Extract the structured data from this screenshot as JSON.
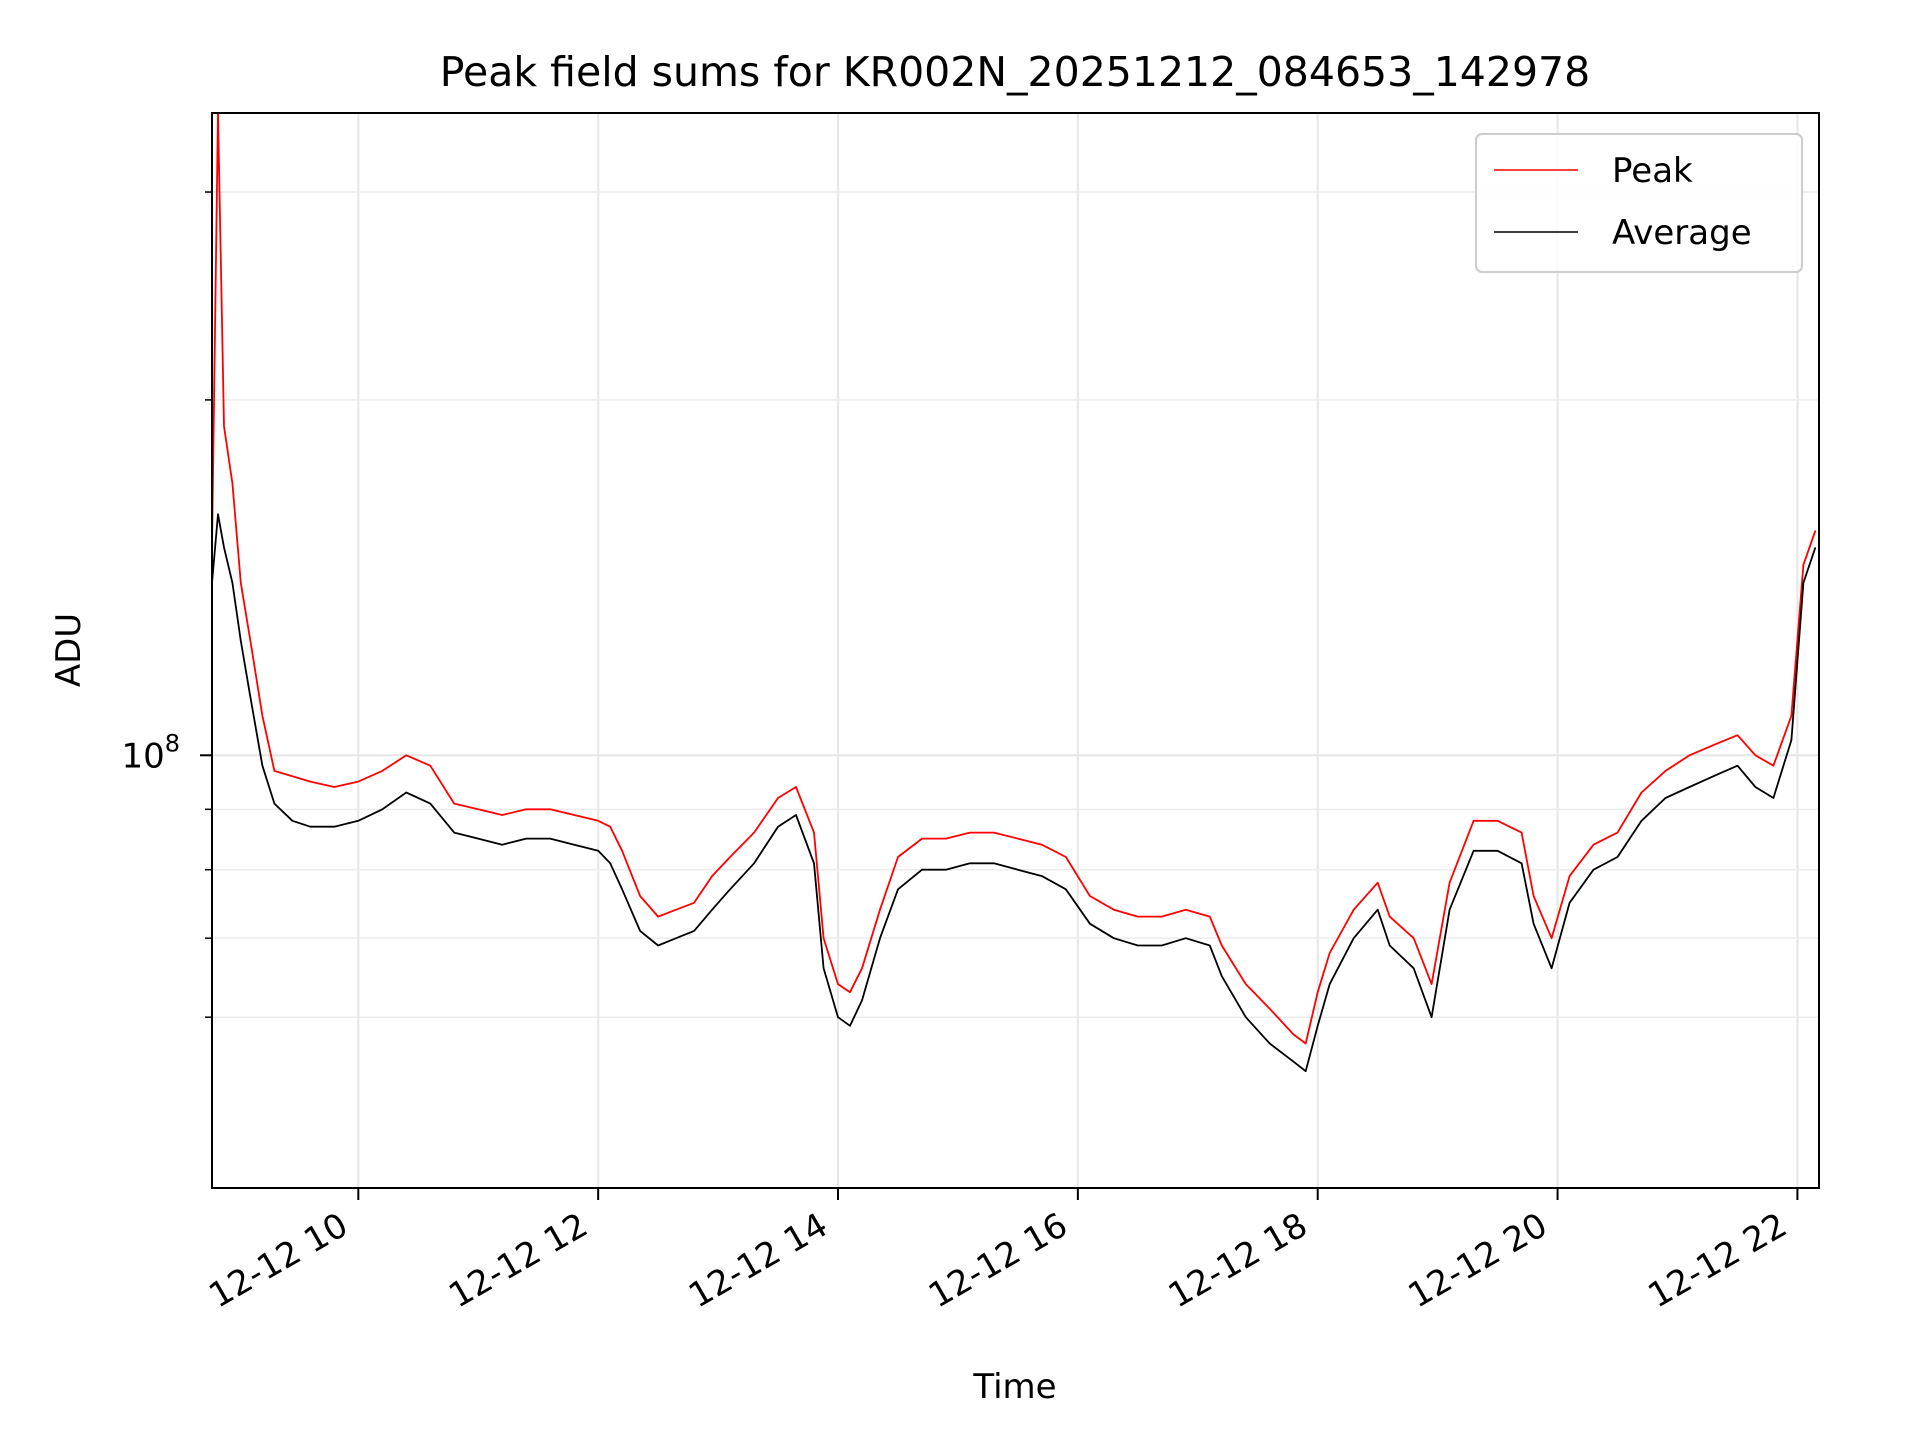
{
  "chart_data": {
    "type": "line",
    "title": "Peak field sums for KR002N_20251212_084653_142978",
    "xlabel": "Time",
    "ylabel": "ADU",
    "yscale": "log",
    "grid": true,
    "legend_position": "upper right",
    "xlim_hours": [
      8.78,
      22.18
    ],
    "ylim": [
      43000000,
      350000000
    ],
    "x_ticks": [
      {
        "value": 10,
        "label": "12-12 10"
      },
      {
        "value": 12,
        "label": "12-12 12"
      },
      {
        "value": 14,
        "label": "12-12 14"
      },
      {
        "value": 16,
        "label": "12-12 16"
      },
      {
        "value": 18,
        "label": "12-12 18"
      },
      {
        "value": 20,
        "label": "12-12 20"
      },
      {
        "value": 22,
        "label": "12-12 22"
      }
    ],
    "y_major_ticks": [
      {
        "value": 100000000,
        "base": "10",
        "exponent": "8"
      }
    ],
    "y_minor_ticks": [
      60000000,
      70000000,
      80000000,
      90000000,
      200000000,
      300000000
    ],
    "series": [
      {
        "name": "Peak",
        "color": "#ff0000",
        "x": [
          8.78,
          8.83,
          8.88,
          8.95,
          9.02,
          9.1,
          9.2,
          9.3,
          9.45,
          9.6,
          9.8,
          10.0,
          10.2,
          10.4,
          10.6,
          10.8,
          11.0,
          11.2,
          11.4,
          11.6,
          11.8,
          12.0,
          12.1,
          12.2,
          12.35,
          12.5,
          12.65,
          12.8,
          12.95,
          13.1,
          13.3,
          13.5,
          13.65,
          13.8,
          13.88,
          14.0,
          14.1,
          14.2,
          14.35,
          14.5,
          14.7,
          14.9,
          15.1,
          15.3,
          15.5,
          15.7,
          15.9,
          16.1,
          16.3,
          16.5,
          16.7,
          16.9,
          17.1,
          17.2,
          17.4,
          17.6,
          17.8,
          17.9,
          18.0,
          18.1,
          18.3,
          18.5,
          18.6,
          18.8,
          18.95,
          19.1,
          19.3,
          19.5,
          19.7,
          19.8,
          19.95,
          20.1,
          20.3,
          20.5,
          20.7,
          20.9,
          21.1,
          21.3,
          21.5,
          21.65,
          21.8,
          21.95,
          22.05,
          22.15
        ],
        "values": [
          150000000,
          350000000,
          190000000,
          170000000,
          140000000,
          125000000,
          108000000,
          97000000,
          96000000,
          95000000,
          94000000,
          95000000,
          97000000,
          100000000,
          98000000,
          91000000,
          90000000,
          89000000,
          90000000,
          90000000,
          89000000,
          88000000,
          87000000,
          83000000,
          76000000,
          73000000,
          74000000,
          75000000,
          79000000,
          82000000,
          86000000,
          92000000,
          94000000,
          86000000,
          70000000,
          64000000,
          63000000,
          66000000,
          74000000,
          82000000,
          85000000,
          85000000,
          86000000,
          86000000,
          85000000,
          84000000,
          82000000,
          76000000,
          74000000,
          73000000,
          73000000,
          74000000,
          73000000,
          69000000,
          64000000,
          61000000,
          58000000,
          57000000,
          63000000,
          68000000,
          74000000,
          78000000,
          73000000,
          70000000,
          64000000,
          78000000,
          88000000,
          88000000,
          86000000,
          76000000,
          70000000,
          79000000,
          84000000,
          86000000,
          93000000,
          97000000,
          100000000,
          102000000,
          104000000,
          100000000,
          98000000,
          108000000,
          145000000,
          155000000
        ]
      },
      {
        "name": "Average",
        "color": "#000000",
        "x": [
          8.78,
          8.83,
          8.88,
          8.95,
          9.02,
          9.1,
          9.2,
          9.3,
          9.45,
          9.6,
          9.8,
          10.0,
          10.2,
          10.4,
          10.6,
          10.8,
          11.0,
          11.2,
          11.4,
          11.6,
          11.8,
          12.0,
          12.1,
          12.2,
          12.35,
          12.5,
          12.65,
          12.8,
          12.95,
          13.1,
          13.3,
          13.5,
          13.65,
          13.8,
          13.88,
          14.0,
          14.1,
          14.2,
          14.35,
          14.5,
          14.7,
          14.9,
          15.1,
          15.3,
          15.5,
          15.7,
          15.9,
          16.1,
          16.3,
          16.5,
          16.7,
          16.9,
          17.1,
          17.2,
          17.4,
          17.6,
          17.8,
          17.9,
          18.0,
          18.1,
          18.3,
          18.5,
          18.6,
          18.8,
          18.95,
          19.1,
          19.3,
          19.5,
          19.7,
          19.8,
          19.95,
          20.1,
          20.3,
          20.5,
          20.7,
          20.9,
          21.1,
          21.3,
          21.5,
          21.65,
          21.8,
          21.95,
          22.05,
          22.15
        ],
        "values": [
          140000000,
          160000000,
          150000000,
          140000000,
          125000000,
          112000000,
          98000000,
          91000000,
          88000000,
          87000000,
          87000000,
          88000000,
          90000000,
          93000000,
          91000000,
          86000000,
          85000000,
          84000000,
          85000000,
          85000000,
          84000000,
          83000000,
          81000000,
          77000000,
          71000000,
          69000000,
          70000000,
          71000000,
          74000000,
          77000000,
          81000000,
          87000000,
          89000000,
          81000000,
          66000000,
          60000000,
          59000000,
          62000000,
          70000000,
          77000000,
          80000000,
          80000000,
          81000000,
          81000000,
          80000000,
          79000000,
          77000000,
          72000000,
          70000000,
          69000000,
          69000000,
          70000000,
          69000000,
          65000000,
          60000000,
          57000000,
          55000000,
          54000000,
          59000000,
          64000000,
          70000000,
          74000000,
          69000000,
          66000000,
          60000000,
          74000000,
          83000000,
          83000000,
          81000000,
          72000000,
          66000000,
          75000000,
          80000000,
          82000000,
          88000000,
          92000000,
          94000000,
          96000000,
          98000000,
          94000000,
          92000000,
          103000000,
          140000000,
          150000000
        ]
      }
    ]
  }
}
